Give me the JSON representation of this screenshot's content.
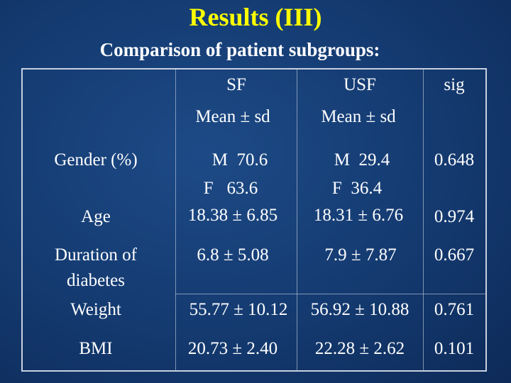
{
  "title": "Results (III)",
  "subtitle": "Comparison of patient subgroups:",
  "table": {
    "header": [
      "SF",
      "USF",
      "sig"
    ],
    "subheader": [
      "Mean ± sd",
      "Mean ± sd"
    ],
    "rows": [
      [
        "Gender (%)",
        [
          "M  70.6",
          "F   63.6"
        ],
        [
          "M  29.4",
          "F  36.4"
        ],
        "0.648"
      ],
      [
        "Age",
        "18.38 ± 6.85",
        "18.31 ± 6.76",
        "0.974"
      ],
      [
        "Duration of diabetes",
        "6.8 ± 5.08",
        "7.9 ± 7.87",
        "0.667"
      ],
      [
        "Weight",
        "55.77 ± 10.12",
        "56.92 ± 10.88",
        "0.761"
      ],
      [
        "BMI",
        "20.73 ± 2.40",
        "22.28 ± 2.62",
        "0.101"
      ]
    ]
  }
}
